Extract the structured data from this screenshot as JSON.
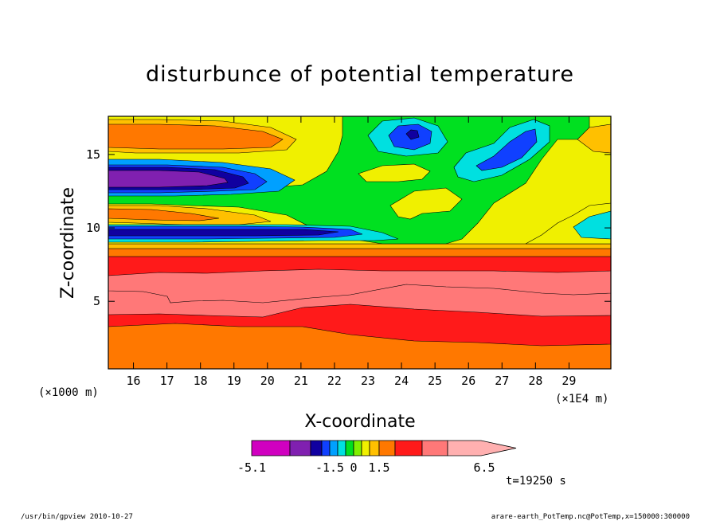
{
  "chart_data": {
    "type": "heatmap",
    "title": "disturbunce of potential temperature",
    "xlabel": "X-coordinate",
    "ylabel": "Z-coordinate",
    "x_unit_left": "(×1000 m)",
    "x_unit_right": "(×1E4 m)",
    "xlim": [
      15.25,
      30.25
    ],
    "ylim": [
      0.4,
      17.6
    ],
    "x_ticks": [
      16,
      17,
      18,
      19,
      20,
      21,
      22,
      23,
      24,
      25,
      26,
      27,
      28,
      29
    ],
    "y_ticks": [
      5,
      10,
      15
    ],
    "colorbar": {
      "labels": [
        {
          "value": -5.1,
          "text": "-5.1"
        },
        {
          "value": -1.5,
          "text": "-1.5"
        },
        {
          "value": 0,
          "text": "0"
        },
        {
          "value": 1.5,
          "text": "1.5"
        },
        {
          "value": 6.5,
          "text": "6.5"
        }
      ],
      "levels": [
        -5.1,
        -3.9,
        -3.0,
        -2.1,
        -1.5,
        -1.0,
        -0.5,
        0,
        0.5,
        1.0,
        1.5,
        2.5,
        3.5,
        5.0,
        6.5
      ],
      "colors": [
        "#d000c0",
        "#8020b0",
        "#1000a0",
        "#1040ff",
        "#00a0ff",
        "#00e0e0",
        "#00e020",
        "#80f000",
        "#f0f000",
        "#ffc000",
        "#ff7800",
        "#ff1a1a",
        "#ff7878",
        "#ffb0b0"
      ]
    },
    "time_label": "t=19250 s"
  },
  "footer": {
    "left": "/usr/bin/gpview  2010-10-27",
    "right": "arare-earth_PotTemp.nc@PotTemp,x=150000:300000"
  },
  "colors": {
    "orange": "#ff7800",
    "red": "#ff1a1a",
    "salmon": "#ff7878",
    "yellow": "#f0f000",
    "gold": "#ffc000",
    "green": "#00e020",
    "cyan": "#00e0e0",
    "sky": "#00a0ff",
    "blue": "#1040ff",
    "navy": "#1000a0",
    "purple": "#8020b0",
    "magenta": "#d000c0"
  }
}
